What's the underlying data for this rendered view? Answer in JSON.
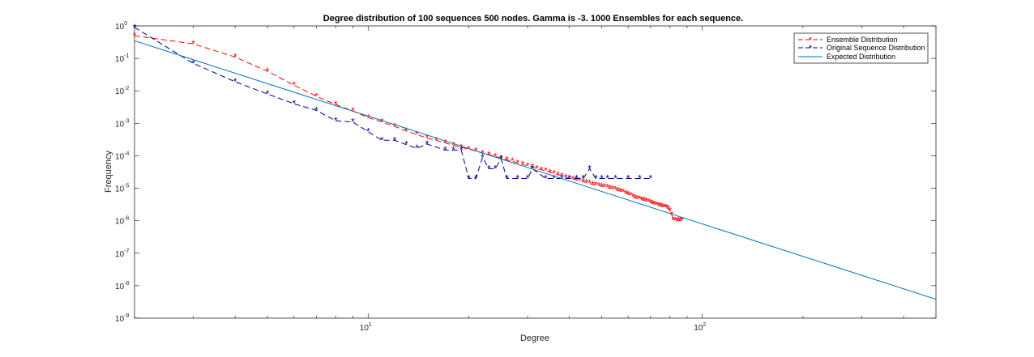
{
  "chart_data": {
    "type": "line",
    "title": "Degree distribution of 100 sequences 500 nodes. Gamma is -3. 1000 Ensembles for each sequence.",
    "xlabel": "Degree",
    "ylabel": "Frequency",
    "xscale": "log",
    "yscale": "log",
    "xlim": [
      2,
      500
    ],
    "ylim": [
      1e-09,
      1
    ],
    "grid": false,
    "legend_position": "top-right",
    "x_ticks": [
      {
        "value": 10,
        "base": "10",
        "exp": "1"
      },
      {
        "value": 100,
        "base": "10",
        "exp": "2"
      }
    ],
    "y_ticks": [
      {
        "value": 1,
        "base": "10",
        "exp": "0"
      },
      {
        "value": 0.1,
        "base": "10",
        "exp": "-1"
      },
      {
        "value": 0.01,
        "base": "10",
        "exp": "-2"
      },
      {
        "value": 0.001,
        "base": "10",
        "exp": "-3"
      },
      {
        "value": 0.0001,
        "base": "10",
        "exp": "-4"
      },
      {
        "value": 1e-05,
        "base": "10",
        "exp": "-5"
      },
      {
        "value": 1e-06,
        "base": "10",
        "exp": "-6"
      },
      {
        "value": 1e-07,
        "base": "10",
        "exp": "-7"
      },
      {
        "value": 1e-08,
        "base": "10",
        "exp": "-8"
      },
      {
        "value": 1e-09,
        "base": "10",
        "exp": "-9"
      }
    ],
    "series": [
      {
        "name": "Ensemble Distribution",
        "color": "#ff0000",
        "style": "dashed",
        "marker": "*",
        "x": [
          2,
          3,
          4,
          5,
          6,
          7,
          8,
          9,
          10,
          11,
          12,
          13,
          14,
          15,
          16,
          17,
          18,
          19,
          20,
          21,
          22,
          23,
          24,
          25,
          26,
          27,
          28,
          29,
          30,
          31,
          32,
          33,
          34,
          35,
          36,
          37,
          38,
          39,
          40,
          41,
          42,
          43,
          44,
          45,
          46,
          47,
          48,
          49,
          50,
          51,
          52,
          53,
          54,
          55,
          56,
          57,
          58,
          59,
          60,
          61,
          62,
          63,
          64,
          65,
          66,
          67,
          68,
          69,
          70,
          71,
          72,
          73,
          74,
          75,
          76,
          77,
          78,
          79,
          80,
          81,
          82,
          83,
          84,
          85,
          86,
          87
        ],
        "y": [
          0.5,
          0.28,
          0.11,
          0.04,
          0.015,
          0.0068,
          0.0038,
          0.0024,
          0.0015,
          0.0011,
          0.0008,
          0.00058,
          0.00045,
          0.00035,
          0.0003,
          0.00025,
          0.00021,
          0.00018,
          0.00016,
          0.00014,
          0.00012,
          0.00011,
          9.5e-05,
          8.5e-05,
          7.5e-05,
          6.8e-05,
          6e-05,
          5.4e-05,
          4.9e-05,
          4.5e-05,
          4e-05,
          3.7e-05,
          3.4e-05,
          3.1e-05,
          2.8e-05,
          2.6e-05,
          2.4e-05,
          2.2e-05,
          2e-05,
          1.9e-05,
          1.8e-05,
          1.7e-05,
          1.6e-05,
          1.5e-05,
          1.4e-05,
          1.3e-05,
          1.25e-05,
          1.2e-05,
          1.15e-05,
          1.1e-05,
          1.05e-05,
          1e-05,
          9.5e-06,
          9e-06,
          8.5e-06,
          8e-06,
          7.5e-06,
          7e-06,
          6.5e-06,
          6e-06,
          5.5e-06,
          5e-06,
          4.8e-06,
          4.6e-06,
          4.4e-06,
          4.2e-06,
          4e-06,
          3.8e-06,
          3.6e-06,
          3.4e-06,
          3.2e-06,
          3e-06,
          2.9e-06,
          2.8e-06,
          2.7e-06,
          2.6e-06,
          2.5e-06,
          2.4e-06,
          2e-06,
          1.5e-06,
          1e-06,
          1e-06,
          1e-06,
          1e-06,
          1e-06,
          1e-06
        ]
      },
      {
        "name": "Original Sequence Distribution",
        "color": "#00008b",
        "style": "dashed",
        "marker": "*",
        "x": [
          2,
          3,
          4,
          5,
          6,
          7,
          8,
          9,
          10,
          11,
          12,
          13,
          14,
          15,
          17,
          18,
          19,
          20,
          21,
          22,
          23,
          24,
          25,
          26,
          28,
          30,
          31,
          34,
          36,
          38,
          40,
          42,
          44,
          46,
          48,
          50,
          52,
          55,
          60,
          65,
          70
        ],
        "y": [
          0.9,
          0.07,
          0.019,
          0.008,
          0.004,
          0.0025,
          0.0012,
          0.0011,
          0.00055,
          0.0003,
          0.0003,
          0.00022,
          0.00017,
          0.00023,
          0.00015,
          0.00015,
          0.00015,
          2e-05,
          2e-05,
          9e-05,
          4e-05,
          4e-05,
          8e-05,
          2e-05,
          2e-05,
          2e-05,
          4e-05,
          2e-05,
          2e-05,
          2e-05,
          2e-05,
          2e-05,
          2e-05,
          4e-05,
          2e-05,
          2e-05,
          2e-05,
          2e-05,
          2e-05,
          2e-05,
          2e-05
        ]
      },
      {
        "name": "Expected Distribution",
        "color": "#0072bd",
        "style": "solid",
        "marker": "",
        "x": [
          2,
          500
        ],
        "y": [
          0.35,
          3.8e-09
        ]
      }
    ]
  }
}
